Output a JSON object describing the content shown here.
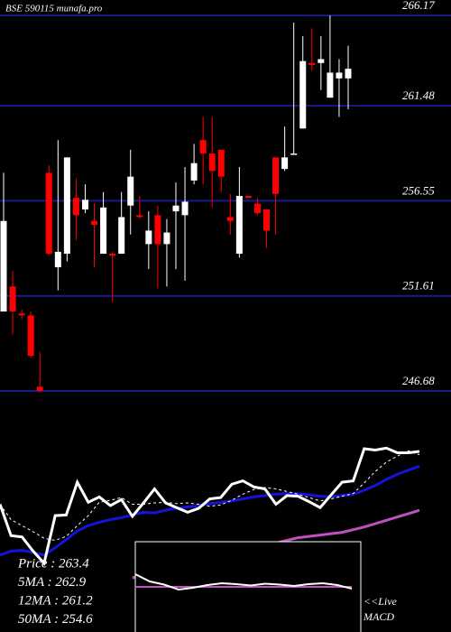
{
  "chart_data": [
    {
      "type": "candlestick",
      "title": "BSE 590115 munafa.pro",
      "open": [
        250.8,
        252.1,
        250.7,
        250.6,
        246.9,
        258.0,
        253.1,
        253.8,
        256.7,
        256.1,
        255.5,
        253.8,
        253.8,
        253.8,
        256.3,
        255.8,
        254.3,
        255.8,
        254.3,
        256.0,
        255.8,
        257.6,
        259.7,
        259.0,
        259.2,
        255.7,
        253.8,
        256.8,
        256.4,
        256.1,
        258.8,
        258.2,
        259.0,
        260.3,
        263.7,
        263.7,
        261.9,
        262.9,
        262.9
      ],
      "high": [
        258.0,
        252.9,
        250.9,
        250.8,
        248.7,
        258.4,
        259.7,
        258.8,
        257.7,
        257.4,
        256.4,
        257.0,
        253.9,
        257.0,
        259.2,
        256.8,
        256.0,
        256.3,
        255.6,
        257.5,
        258.3,
        259.5,
        260.9,
        260.9,
        259.2,
        256.9,
        258.3,
        256.8,
        256.7,
        256.1,
        258.8,
        260.4,
        265.8,
        265.1,
        265.5,
        265.1,
        266.17,
        263.9,
        264.6
      ],
      "low": [
        250.8,
        249.6,
        250.4,
        248.4,
        246.6,
        253.7,
        251.9,
        253.4,
        254.5,
        255.9,
        253.1,
        253.8,
        251.3,
        253.8,
        254.8,
        255.6,
        253.0,
        252.0,
        252.1,
        253.0,
        252.4,
        257.4,
        257.4,
        256.2,
        257.0,
        254.8,
        253.6,
        256.7,
        255.8,
        254.1,
        254.8,
        258.1,
        259.0,
        260.3,
        263.3,
        262.3,
        261.9,
        260.9,
        261.3
      ],
      "close": [
        255.5,
        250.8,
        250.6,
        248.5,
        246.68,
        253.8,
        253.9,
        258.8,
        255.8,
        256.6,
        255.3,
        256.2,
        253.7,
        255.7,
        257.8,
        255.7,
        255.0,
        254.3,
        254.9,
        256.3,
        256.5,
        258.5,
        259.0,
        258.1,
        257.8,
        255.5,
        256.8,
        256.7,
        255.9,
        255.0,
        256.9,
        258.8,
        259.0,
        263.8,
        263.6,
        263.9,
        263.2,
        263.2,
        263.4
      ],
      "up_color": "#ffffff",
      "down_color": "#ff0000",
      "ylim": [
        246.35,
        266.97
      ],
      "yticks": [
        246.68,
        251.61,
        256.55,
        261.48,
        266.17
      ],
      "grid": true,
      "grid_color": "#1a1a8c"
    },
    {
      "type": "line",
      "ylim": [
        236.4,
        271.5
      ],
      "series": [
        {
          "name": "50MA : 254.6",
          "color": "#c050c0",
          "width": 3,
          "dash": false,
          "values": [
            null,
            null,
            null,
            null,
            null,
            null,
            null,
            null,
            null,
            null,
            null,
            null,
            244.5,
            244.9,
            245.3,
            245.7,
            246.1,
            246.5,
            246.9,
            247.3,
            247.7,
            248.1,
            248.5,
            248.9,
            249.3,
            249.7,
            250.1,
            250.5,
            250.7,
            250.9,
            251.1,
            251.3,
            251.7,
            252.1,
            252.6,
            253.1,
            253.6,
            254.1,
            254.6
          ]
        },
        {
          "name": "12MA : 261.2",
          "color": "#1414d8",
          "width": 3,
          "dash": false,
          "values": [
            247.9,
            248.5,
            248.6,
            248.3,
            247.9,
            249.0,
            250.2,
            251.5,
            252.3,
            252.8,
            253.2,
            253.5,
            253.9,
            254.3,
            254.2,
            254.6,
            254.9,
            255.1,
            255.3,
            255.6,
            255.8,
            256.0,
            256.3,
            256.6,
            256.8,
            257.0,
            257.1,
            257.1,
            256.9,
            256.7,
            256.6,
            256.8,
            257.0,
            257.6,
            258.3,
            259.2,
            260.0,
            260.6,
            261.2
          ]
        },
        {
          "name": "5MA : 262.9",
          "color": "#ffffff",
          "width": 1,
          "dash": true,
          "values": [
            255.5,
            253.2,
            252.3,
            251.4,
            250.4,
            250.1,
            250.7,
            252.3,
            253.8,
            255.8,
            256.1,
            256.5,
            255.5,
            255.5,
            255.7,
            255.8,
            255.6,
            255.7,
            255.5,
            255.2,
            255.4,
            256.1,
            257.0,
            257.7,
            258.0,
            257.8,
            257.4,
            257.0,
            256.5,
            256.0,
            256.3,
            256.7,
            257.1,
            258.7,
            260.4,
            261.8,
            262.7,
            263.5,
            262.9
          ]
        },
        {
          "name": "Price : 263.4",
          "color": "#ffffff",
          "width": 3,
          "dash": false,
          "values": [
            255.5,
            250.8,
            250.6,
            248.5,
            246.68,
            253.8,
            253.9,
            258.8,
            255.8,
            256.6,
            255.3,
            256.2,
            253.7,
            255.7,
            257.8,
            255.7,
            255.0,
            254.3,
            254.9,
            256.3,
            256.5,
            258.5,
            259.0,
            258.1,
            257.8,
            255.5,
            256.8,
            256.7,
            255.9,
            255.0,
            256.9,
            258.8,
            259.0,
            263.8,
            263.6,
            263.9,
            263.2,
            263.2,
            263.4
          ]
        }
      ],
      "legend_order": [
        3,
        2,
        1,
        0
      ]
    },
    {
      "type": "macd",
      "label_lines": [
        "<<Live",
        "MACD"
      ],
      "ylim": [
        -1,
        1
      ],
      "series": [
        {
          "color": "#c050c0",
          "values": [
            0,
            0,
            0,
            0,
            0,
            0,
            0,
            0,
            0,
            0,
            0,
            0,
            0,
            0,
            0,
            0
          ]
        },
        {
          "color": "#ffffff",
          "values": [
            0.28,
            0.12,
            0.05,
            -0.06,
            -0.02,
            0.04,
            0.08,
            0.06,
            0.03,
            0.07,
            0.05,
            0.02,
            0.06,
            0.08,
            0.04,
            -0.04
          ]
        }
      ]
    }
  ]
}
